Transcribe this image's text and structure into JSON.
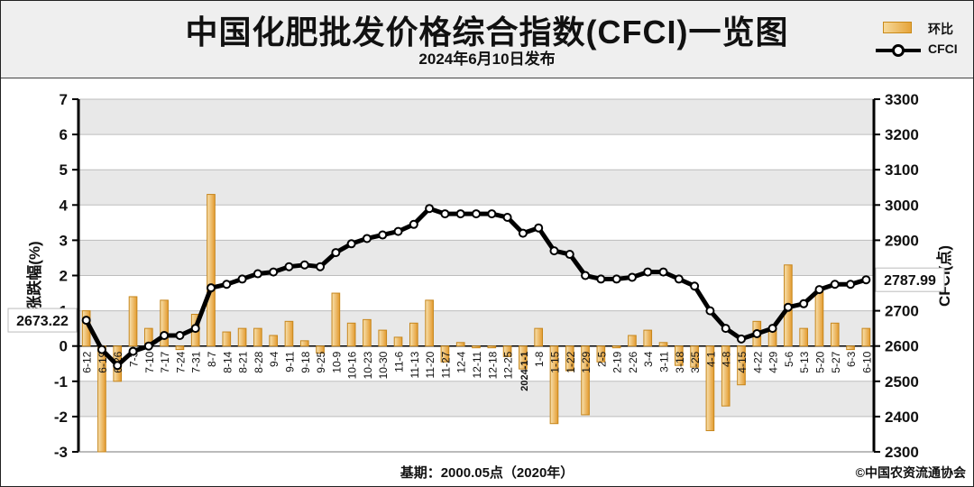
{
  "title": "中国化肥批发价格综合指数(CFCI)一览图",
  "subtitle": "2024年6月10日发布",
  "legend": {
    "bar_label": "环比",
    "line_label": "CFCI"
  },
  "footer": {
    "base": "基期：2000.05点（2020年）",
    "copyright": "©中国农资流通协会"
  },
  "colors": {
    "bar": "#e8a640",
    "bar_light": "#f7dca0",
    "line": "#000000",
    "plot_band": "#e8e8e8"
  },
  "chart_data": {
    "type": "bar+line",
    "y_left": {
      "label": "涨跌幅(%)",
      "min": -3,
      "max": 7,
      "ticks": [
        "7",
        "6",
        "5",
        "4",
        "3",
        "2",
        "1",
        "0",
        "-1",
        "-2",
        "-3"
      ]
    },
    "y_right": {
      "label": "CFCI(点)",
      "min": 2300,
      "max": 3300,
      "ticks": [
        "3300",
        "3200",
        "3100",
        "3000",
        "2900",
        "2800",
        "2700",
        "2600",
        "2500",
        "2400",
        "2300"
      ]
    },
    "x_labels": [
      "6-12",
      "6-19",
      "6-26",
      "7-3",
      "7-10",
      "7-17",
      "7-24",
      "7-31",
      "8-7",
      "8-14",
      "8-21",
      "8-28",
      "9-4",
      "9-11",
      "9-18",
      "9-25",
      "10-9",
      "10-16",
      "10-23",
      "10-30",
      "11-6",
      "11-13",
      "11-20",
      "11-27",
      "12-4",
      "12-11",
      "12-18",
      "12-25",
      "2024-1-1",
      "1-8",
      "1-15",
      "1-22",
      "1-29",
      "2-5",
      "2-19",
      "2-26",
      "3-4",
      "3-11",
      "3-18",
      "3-25",
      "4-1",
      "4-8",
      "4-15",
      "4-22",
      "4-29",
      "5-6",
      "5-13",
      "5-20",
      "5-27",
      "6-3",
      "6-10"
    ],
    "x_label_bold": [
      "2024-1-1"
    ],
    "bars": [
      1.0,
      -3.0,
      -1.0,
      1.4,
      0.5,
      1.3,
      -0.1,
      0.9,
      4.3,
      0.4,
      0.5,
      0.5,
      0.3,
      0.7,
      0.15,
      -0.2,
      1.5,
      0.65,
      0.75,
      0.45,
      0.25,
      0.65,
      1.3,
      -0.45,
      0.1,
      -0.05,
      -0.05,
      -0.3,
      -0.65,
      0.5,
      -2.2,
      -0.7,
      -1.95,
      -0.45,
      -0.05,
      0.3,
      0.45,
      0.1,
      -0.55,
      -0.6,
      -2.4,
      -1.7,
      -1.1,
      0.7,
      0.45,
      2.3,
      0.5,
      1.55,
      0.65,
      -0.1,
      0.5
    ],
    "cfci": [
      2673.22,
      2590,
      2545,
      2585,
      2600,
      2630,
      2630,
      2650,
      2765,
      2775,
      2790,
      2805,
      2810,
      2825,
      2830,
      2825,
      2865,
      2890,
      2905,
      2915,
      2925,
      2945,
      2990,
      2975,
      2975,
      2975,
      2975,
      2965,
      2920,
      2935,
      2870,
      2860,
      2800,
      2790,
      2790,
      2795,
      2810,
      2810,
      2790,
      2770,
      2700,
      2650,
      2620,
      2635,
      2650,
      2710,
      2720,
      2760,
      2775,
      2775,
      2787.99
    ],
    "callouts": {
      "first": "2673.22",
      "last": "2787.99"
    }
  }
}
